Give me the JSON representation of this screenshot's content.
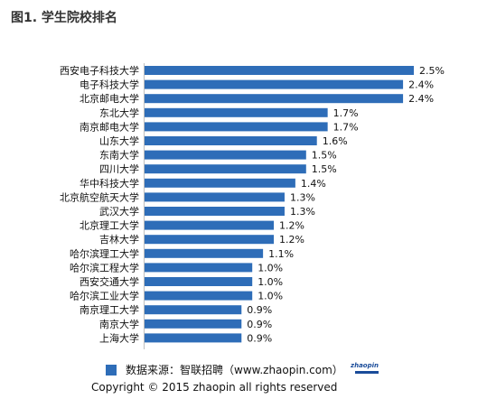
{
  "page": {
    "title": "图1. 学生院校排名",
    "source_text": "数据来源：智联招聘（www.zhaopin.com）",
    "copyright": "Copyright  ©  2015 zhaopin all rights reserved",
    "logo_text": "zhaopin",
    "bar_color": "#2E6DB8"
  },
  "chart_data": {
    "type": "bar",
    "orientation": "horizontal",
    "title": "图1. 学生院校排名",
    "xlabel": "",
    "ylabel": "",
    "xlim": [
      0,
      2.5
    ],
    "grid": false,
    "value_format": "percent",
    "categories": [
      "西安电子科技大学",
      "电子科技大学",
      "北京邮电大学",
      "东北大学",
      "南京邮电大学",
      "山东大学",
      "东南大学",
      "四川大学",
      "华中科技大学",
      "北京航空航天大学",
      "武汉大学",
      "北京理工大学",
      "吉林大学",
      "哈尔滨理工大学",
      "哈尔滨工程大学",
      "西安交通大学",
      "哈尔滨工业大学",
      "南京理工大学",
      "南京大学",
      "上海大学"
    ],
    "values": [
      2.5,
      2.4,
      2.4,
      1.7,
      1.7,
      1.6,
      1.5,
      1.5,
      1.4,
      1.3,
      1.3,
      1.2,
      1.2,
      1.1,
      1.0,
      1.0,
      1.0,
      0.9,
      0.9,
      0.9
    ],
    "value_labels": [
      "2.5%",
      "2.4%",
      "2.4%",
      "1.7%",
      "1.7%",
      "1.6%",
      "1.5%",
      "1.5%",
      "1.4%",
      "1.3%",
      "1.3%",
      "1.2%",
      "1.2%",
      "1.1%",
      "1.0%",
      "1.0%",
      "1.0%",
      "0.9%",
      "0.9%",
      "0.9%"
    ]
  }
}
